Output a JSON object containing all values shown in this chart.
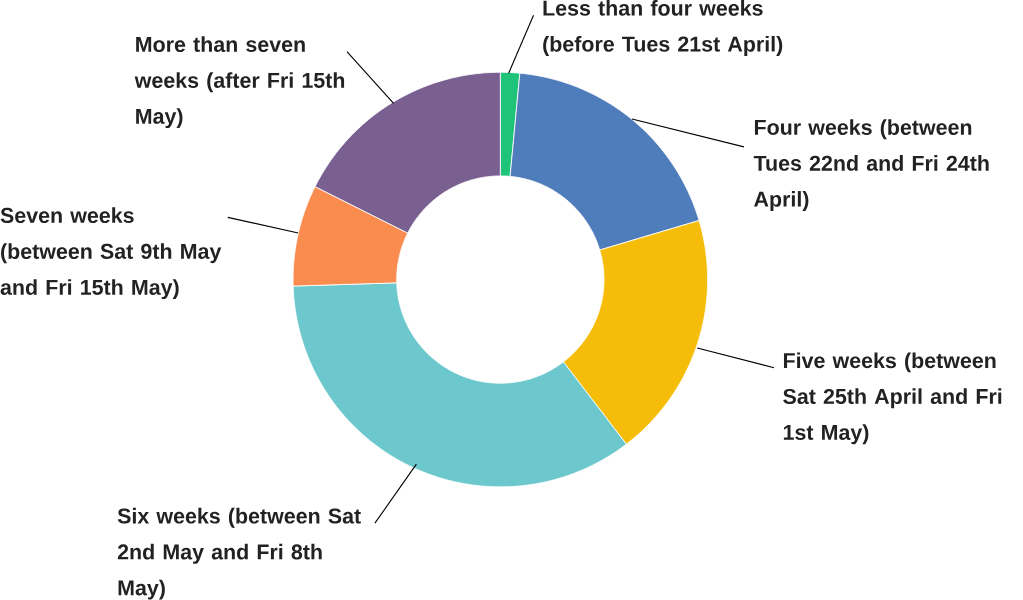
{
  "chart_data": {
    "type": "donut",
    "categories": [
      "Less than four weeks (before Tues 21st April)",
      "Four weeks (between Tues 22nd and Fri 24th April)",
      "Five weeks (between Sat 25th April and Fri 1st May)",
      "Six weeks (between Sat 2nd May and Fri 8th May)",
      "Seven weeks (between Sat 9th May and Fri 15th May)",
      "More than seven weeks (after Fri 15th May)"
    ],
    "values": [
      1.5,
      18.9,
      19.2,
      34.9,
      7.9,
      17.6
    ],
    "colors": [
      "#1fc47a",
      "#4f7cba",
      "#f5bd0a",
      "#6cc8cc",
      "#fa8c4f",
      "#7a5f91"
    ]
  }
}
